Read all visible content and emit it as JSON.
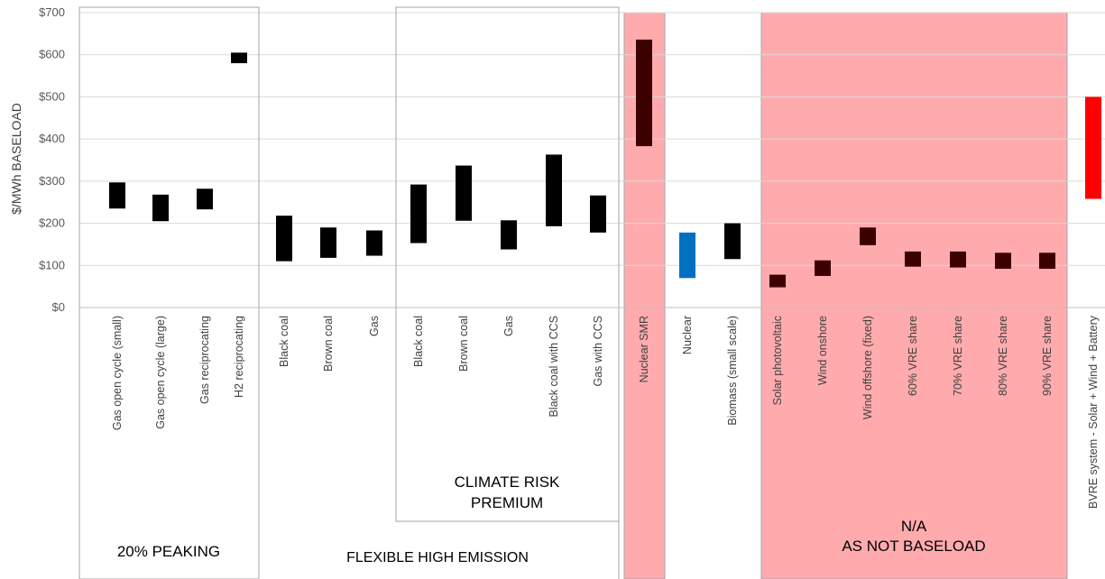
{
  "chart_data": {
    "type": "bar",
    "subtype": "floating-range",
    "ylabel": "$/MWh BASELOAD",
    "ylim": [
      0,
      700
    ],
    "yticks": [
      "$0",
      "$100",
      "$200",
      "$300",
      "$400",
      "$500",
      "$600",
      "$700"
    ],
    "grid": true,
    "categories": [
      "Gas open cycle (small)",
      "Gas open cycle (large)",
      "Gas reciprocating",
      "H2 reciprocating",
      "Black coal",
      "Brown coal",
      "Gas",
      "Black coal",
      "Brown coal",
      "Gas",
      "Black coal with CCS",
      "Gas with CCS",
      "Nuclear SMR",
      "Nuclear",
      "Biomass (small scale)",
      "Solar photovoltaic",
      "Wind onshore",
      "Wind offshore (fixed)",
      "60% VRE share",
      "70% VRE share",
      "80% VRE share",
      "90% VRE share",
      "BVRE system - Solar + Wind + Battery"
    ],
    "ranges": [
      [
        235,
        297
      ],
      [
        205,
        268
      ],
      [
        233,
        282
      ],
      [
        580,
        605
      ],
      [
        110,
        218
      ],
      [
        118,
        190
      ],
      [
        123,
        183
      ],
      [
        153,
        292
      ],
      [
        206,
        337
      ],
      [
        138,
        207
      ],
      [
        193,
        363
      ],
      [
        178,
        266
      ],
      [
        383,
        636
      ],
      [
        70,
        178
      ],
      [
        115,
        200
      ],
      [
        48,
        78
      ],
      [
        75,
        112
      ],
      [
        148,
        190
      ],
      [
        97,
        133
      ],
      [
        95,
        133
      ],
      [
        92,
        130
      ],
      [
        92,
        130
      ],
      [
        258,
        500
      ]
    ],
    "bar_colors": [
      "#000000",
      "#000000",
      "#000000",
      "#000000",
      "#000000",
      "#000000",
      "#000000",
      "#000000",
      "#000000",
      "#000000",
      "#000000",
      "#000000",
      "#3d0000",
      "#0070c0",
      "#000000",
      "#3d0000",
      "#3d0000",
      "#3d0000",
      "#3d0000",
      "#3d0000",
      "#3d0000",
      "#3d0000",
      "#ff0000"
    ],
    "groups": [
      {
        "label": "20% PEAKING",
        "label_line2": ""
      },
      {
        "label": "FLEXIBLE HIGH EMISSION",
        "label_line2": ""
      },
      {
        "label": "CLIMATE RISK",
        "label_line2": "PREMIUM"
      },
      {
        "label": "N/A",
        "label_line2": "AS NOT BASELOAD"
      }
    ],
    "highlight_color": "#ffabae"
  }
}
